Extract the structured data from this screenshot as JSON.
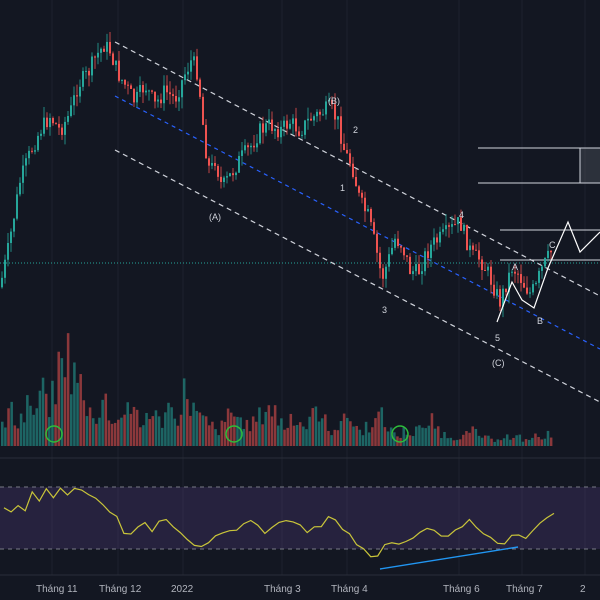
{
  "colors": {
    "background": "#131722",
    "grid": "#1e222d",
    "up": "#26a69a",
    "down": "#ef5350",
    "channel": "#d1d4dc",
    "midline": "#2962ff",
    "rsi_line": "#c9c53a",
    "rsi_band": "#7e57c2",
    "divergence": "#2196f3",
    "marker": "#2ebd3a",
    "price_line": "#26a69a"
  },
  "icons": [
    "circle-marker-icon",
    "circle-marker-icon",
    "circle-marker-icon"
  ],
  "wave_labels": [
    "(B)",
    "(A)",
    "(C)",
    "1",
    "2",
    "3",
    "4",
    "5",
    "A",
    "B",
    "C"
  ],
  "x_axis": [
    "Tháng 11",
    "Tháng 12",
    "2022",
    "Tháng 3",
    "Tháng 4",
    "Tháng 6",
    "Tháng 7",
    "2"
  ],
  "chart_data": {
    "type": "candlestick",
    "title": "",
    "xlabel": "",
    "ylabel": "",
    "x_ticks": [
      "Tháng 11",
      "Tháng 12",
      "2022",
      "Tháng 3",
      "Tháng 4",
      "Tháng 6",
      "Tháng 7",
      "2"
    ],
    "price_path": [
      [
        0,
        85
      ],
      [
        8,
        72
      ],
      [
        20,
        48
      ],
      [
        30,
        38
      ],
      [
        40,
        30
      ],
      [
        50,
        25
      ],
      [
        60,
        30
      ],
      [
        70,
        24
      ],
      [
        78,
        14
      ],
      [
        88,
        10
      ],
      [
        96,
        4
      ],
      [
        104,
        0
      ],
      [
        110,
        2
      ],
      [
        118,
        10
      ],
      [
        125,
        14
      ],
      [
        135,
        20
      ],
      [
        145,
        14
      ],
      [
        155,
        21
      ],
      [
        165,
        16
      ],
      [
        175,
        19
      ],
      [
        185,
        10
      ],
      [
        192,
        5
      ],
      [
        198,
        10
      ],
      [
        205,
        35
      ],
      [
        210,
        45
      ],
      [
        215,
        40
      ],
      [
        222,
        50
      ],
      [
        230,
        46
      ],
      [
        240,
        40
      ],
      [
        250,
        36
      ],
      [
        260,
        30
      ],
      [
        270,
        28
      ],
      [
        280,
        30
      ],
      [
        290,
        27
      ],
      [
        300,
        30
      ],
      [
        310,
        26
      ],
      [
        320,
        24
      ],
      [
        330,
        22
      ],
      [
        338,
        27
      ],
      [
        345,
        38
      ],
      [
        352,
        42
      ],
      [
        360,
        55
      ],
      [
        368,
        60
      ],
      [
        375,
        70
      ],
      [
        382,
        82
      ],
      [
        388,
        76
      ],
      [
        395,
        68
      ],
      [
        402,
        70
      ],
      [
        410,
        79
      ],
      [
        418,
        80
      ],
      [
        425,
        74
      ],
      [
        432,
        70
      ],
      [
        440,
        68
      ],
      [
        450,
        65
      ],
      [
        460,
        62
      ],
      [
        466,
        68
      ],
      [
        472,
        74
      ],
      [
        480,
        75
      ],
      [
        488,
        80
      ],
      [
        495,
        86
      ],
      [
        500,
        90
      ],
      [
        506,
        84
      ],
      [
        512,
        78
      ],
      [
        518,
        80
      ],
      [
        524,
        84
      ],
      [
        530,
        87
      ],
      [
        536,
        85
      ],
      [
        540,
        80
      ],
      [
        546,
        76
      ],
      [
        552,
        72
      ]
    ],
    "volume": [
      20,
      35,
      25,
      30,
      45,
      30,
      60,
      40,
      50,
      80,
      95,
      70,
      65,
      40,
      35,
      30,
      45,
      30,
      25,
      35,
      40,
      30,
      20,
      35,
      30,
      25,
      40,
      35,
      30,
      55,
      40,
      30,
      25,
      20,
      15,
      20,
      35,
      30,
      25,
      20,
      25,
      30,
      40,
      35,
      25,
      20,
      30,
      25,
      20,
      30,
      35,
      25,
      15,
      20,
      25,
      30,
      20,
      15,
      20,
      25,
      30,
      20,
      15,
      10,
      15,
      12,
      20,
      15,
      25,
      18,
      12,
      10,
      8,
      10,
      12,
      15,
      10,
      8,
      6,
      8,
      10,
      7,
      9,
      6,
      8,
      10,
      7,
      12
    ],
    "rsi": [
      60,
      55,
      62,
      58,
      70,
      65,
      72,
      68,
      75,
      70,
      76,
      72,
      70,
      65,
      60,
      55,
      50,
      40,
      38,
      42,
      45,
      40,
      50,
      48,
      42,
      38,
      35,
      30,
      28,
      32,
      35,
      38,
      40,
      42,
      45,
      48,
      44,
      40,
      42,
      46,
      50,
      48,
      44,
      40,
      42,
      45,
      50,
      48,
      42,
      38,
      30,
      25,
      20,
      22,
      28,
      32,
      30,
      34,
      36,
      38,
      42,
      40,
      36,
      38,
      42,
      45,
      48,
      44,
      40,
      36,
      32,
      30,
      35,
      38,
      36,
      42,
      48,
      52,
      55
    ]
  }
}
